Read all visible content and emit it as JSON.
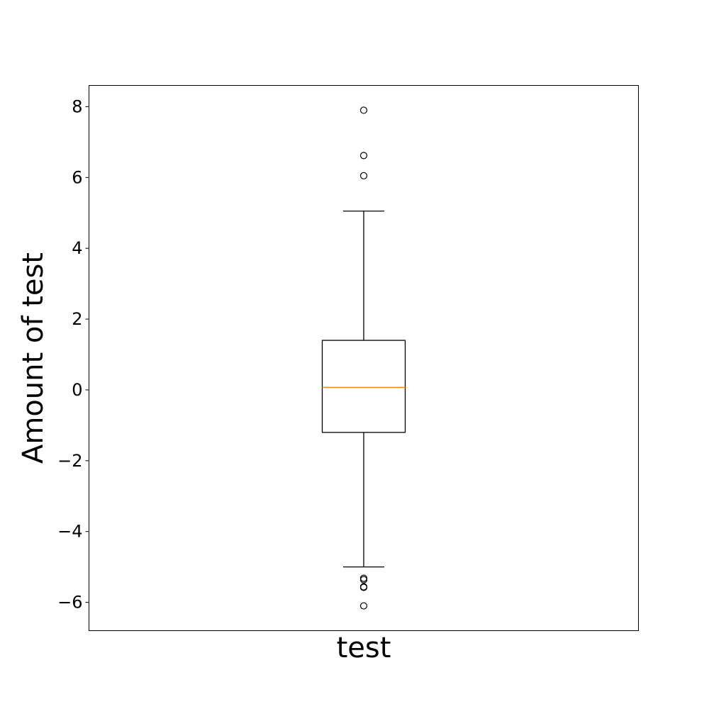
{
  "chart_data": {
    "type": "box",
    "title": "",
    "xlabel": "test",
    "ylabel": "Amount of test",
    "ylim": [
      -6.8,
      8.6
    ],
    "yticks": [
      -6,
      -4,
      -2,
      0,
      2,
      4,
      6,
      8
    ],
    "ytick_labels": [
      "−6",
      "−4",
      "−2",
      "0",
      "2",
      "4",
      "6",
      "8"
    ],
    "grid": false,
    "box": {
      "whisker_low": -5.0,
      "q1": -1.2,
      "median": 0.07,
      "q3": 1.4,
      "whisker_high": 5.05,
      "outliers": [
        7.9,
        6.62,
        6.05,
        -5.32,
        -5.36,
        -5.56,
        -5.58,
        -6.1
      ]
    },
    "colors": {
      "box": "#000000",
      "median": "#ff7f0e",
      "outlier": "#000000"
    }
  }
}
